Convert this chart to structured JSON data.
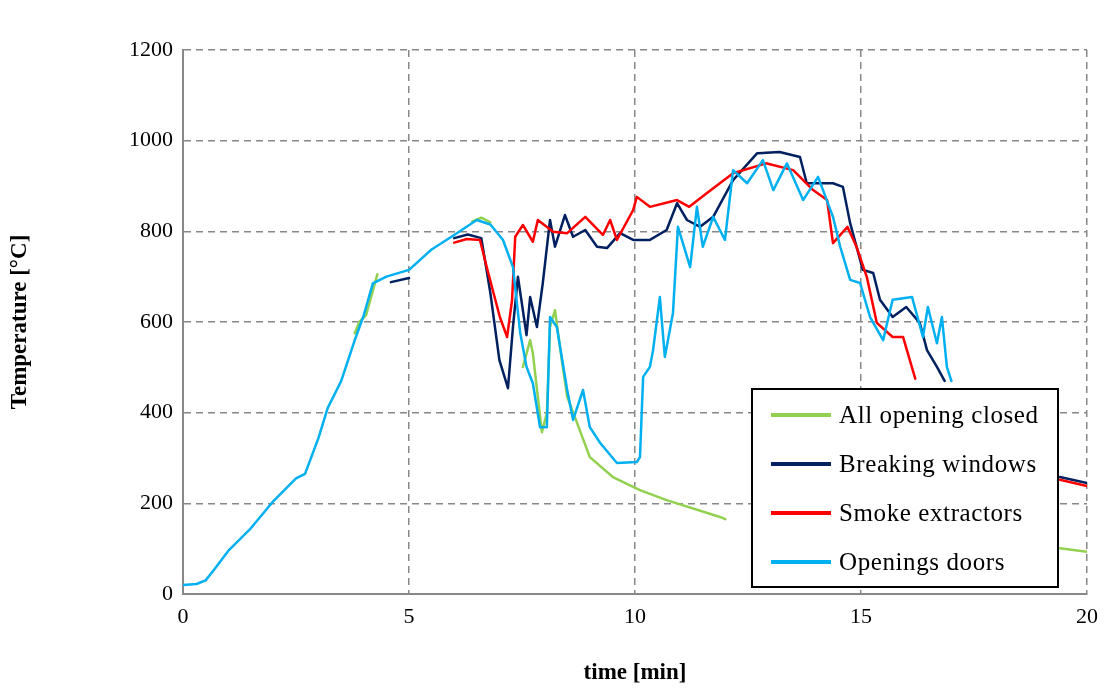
{
  "chart_data": {
    "type": "line",
    "xlabel": "time [min]",
    "ylabel": "Temperature [°C]",
    "xlim": [
      0,
      20
    ],
    "xticks": [
      0,
      5,
      10,
      15,
      20
    ],
    "ylim": [
      0,
      1200
    ],
    "yticks": [
      0,
      200,
      400,
      600,
      800,
      1000,
      1200
    ],
    "grid": true,
    "legend": "bottom right",
    "marker": "none",
    "line_style": "solid",
    "series": [
      {
        "name": "All opening closed",
        "color": "#92d050",
        "x": [
          3.8,
          3.9,
          4.05,
          4.3,
          4.8,
          6.4,
          6.6,
          6.8,
          7.1,
          7.52,
          7.68,
          7.74,
          7.94,
          8.05,
          8.12,
          8.23,
          8.38,
          8.5,
          8.72,
          9,
          9.51,
          10.11,
          10.7,
          11.88,
          12.0,
          12.5,
          19.4,
          20
        ],
        "values": [
          575,
          600,
          615,
          705,
          null,
          822,
          830,
          820,
          null,
          501,
          560,
          531,
          357,
          399,
          589,
          626,
          516,
          435,
          377,
          302,
          258,
          229,
          207,
          170,
          165,
          null,
          101,
          93
        ]
      },
      {
        "name": "Breaking windows",
        "color": "#002060",
        "x": [
          4.6,
          5,
          5.5,
          6,
          6.3,
          6.6,
          6.8,
          7.0,
          7.19,
          7.3,
          7.41,
          7.6,
          7.68,
          7.83,
          7.96,
          8.12,
          8.23,
          8.45,
          8.63,
          8.9,
          9.16,
          9.38,
          9.67,
          9.96,
          10.33,
          10.7,
          10.93,
          11.15,
          11.44,
          11.73,
          12.17,
          12.7,
          13.2,
          13.65,
          13.8,
          14.38,
          14.6,
          14.76,
          15.04,
          15.27,
          15.42,
          15.7,
          16.0,
          16.3,
          16.46,
          16.68,
          16.85,
          17.0,
          19.4,
          20
        ],
        "values": [
          688,
          697,
          null,
          785,
          793,
          785,
          664,
          516,
          454,
          589,
          700,
          571,
          655,
          589,
          686,
          825,
          766,
          836,
          788,
          803,
          766,
          763,
          796,
          781,
          781,
          803,
          862,
          825,
          810,
          832,
          913,
          972,
          975,
          964,
          906,
          906,
          898,
          818,
          715,
          708,
          649,
          611,
          633,
          598,
          538,
          501,
          470,
          null,
          258,
          245
        ]
      },
      {
        "name": "Smoke extractors",
        "color": "#ff0000",
        "x": [
          6,
          6.28,
          6.57,
          6.72,
          6.87,
          7.01,
          7.17,
          7.28,
          7.35,
          7.52,
          7.74,
          7.85,
          8.19,
          8.5,
          8.9,
          9.29,
          9.45,
          9.6,
          9.96,
          10.04,
          10.33,
          10.93,
          11.2,
          11.6,
          12.17,
          12.9,
          13.5,
          13.94,
          14.25,
          14.38,
          14.7,
          14.9,
          15.13,
          15.35,
          15.7,
          15.93,
          16.2,
          16.4,
          19.4,
          20
        ],
        "values": [
          775,
          783,
          781,
          721,
          664,
          611,
          567,
          648,
          788,
          814,
          777,
          825,
          799,
          796,
          832,
          792,
          825,
          781,
          847,
          876,
          854,
          869,
          854,
          885,
          928,
          950,
          935,
          891,
          869,
          774,
          810,
          766,
          699,
          598,
          567,
          567,
          475,
          null,
          252,
          238
        ]
      },
      {
        "name": "Openings doors",
        "color": "#00b0f0",
        "x": [
          0,
          0.3,
          0.5,
          0.7,
          1,
          1.5,
          2,
          2.5,
          2.7,
          3,
          3.2,
          3.5,
          3.8,
          4,
          4.2,
          4.5,
          5,
          5.5,
          6,
          6.5,
          6.8,
          7.08,
          7.3,
          7.46,
          7.6,
          7.74,
          7.9,
          8.05,
          8.12,
          8.27,
          8.5,
          8.63,
          8.85,
          9.0,
          9.23,
          9.6,
          10.04,
          10.11,
          10.18,
          10.33,
          10.4,
          10.55,
          10.66,
          10.84,
          10.95,
          11.22,
          11.37,
          11.5,
          11.73,
          11.99,
          12.17,
          12.48,
          12.83,
          13.06,
          13.36,
          13.72,
          14.05,
          14.38,
          14.54,
          14.76,
          14.98,
          15.2,
          15.49,
          15.7,
          16.13,
          16.37,
          16.48,
          16.68,
          16.79,
          16.9,
          17.0
        ],
        "values": [
          20,
          22,
          30,
          55,
          95,
          145,
          205,
          255,
          265,
          345,
          410,
          470,
          560,
          615,
          685,
          700,
          715,
          760,
          792,
          825,
          815,
          781,
          721,
          576,
          501,
          465,
          368,
          368,
          611,
          589,
          450,
          384,
          450,
          368,
          333,
          289,
          291,
          302,
          479,
          501,
          538,
          655,
          523,
          620,
          810,
          721,
          854,
          766,
          832,
          781,
          935,
          906,
          957,
          891,
          950,
          869,
          920,
          832,
          766,
          693,
          686,
          611,
          560,
          649,
          655,
          567,
          633,
          553,
          611,
          501,
          470
        ]
      }
    ]
  }
}
